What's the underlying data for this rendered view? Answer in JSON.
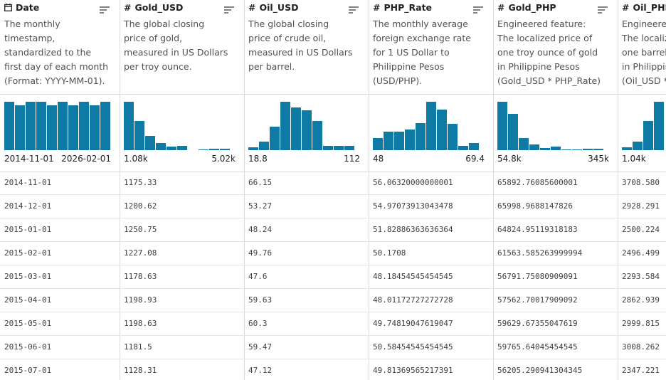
{
  "table": {
    "columns": [
      {
        "name": "Date",
        "description": "The monthly timestamp, standardized to the first day of each month (Format: YYYY-MM-01).",
        "histogram": [
          100,
          93,
          100,
          100,
          93,
          100,
          93,
          100,
          93,
          100
        ],
        "range_min": "2014-11-01",
        "range_max": "2026-02-01"
      },
      {
        "type_symbol": "#",
        "name": "Gold_USD",
        "description": "The global closing price of gold, measured in US Dollars per troy ounce.",
        "histogram": [
          100,
          60,
          29,
          15,
          7,
          9,
          0,
          1,
          3,
          3
        ],
        "range_min": "1.08k",
        "range_max": "5.02k"
      },
      {
        "type_symbol": "#",
        "name": "Oil_USD",
        "description": "The global closing price of crude oil, measured in US Dollars per barrel.",
        "histogram": [
          6,
          18,
          49,
          100,
          88,
          82,
          60,
          9,
          9,
          9
        ],
        "range_min": "18.8",
        "range_max": "112"
      },
      {
        "type_symbol": "#",
        "name": "PHP_Rate",
        "description": "The monthly average foreign exchange rate for 1 US Dollar to Philippine Pesos (USD/PHP).",
        "histogram": [
          25,
          38,
          38,
          43,
          56,
          100,
          84,
          54,
          9,
          15
        ],
        "range_min": "48",
        "range_max": "69.4"
      },
      {
        "type_symbol": "#",
        "name": "Gold_PHP",
        "description": "Engineered feature: The localized price of one troy ounce of gold in Philippine Pesos (Gold_USD * PHP_Rate)",
        "histogram": [
          100,
          75,
          25,
          12,
          4,
          7,
          1,
          1,
          3,
          3
        ],
        "range_min": "54.8k",
        "range_max": "345k"
      },
      {
        "type_symbol": "#",
        "name": "Oil_PHP",
        "description": "Engineered feature: The localized price of one barrel of crude oil in Philippine Pesos (Oil_USD * PHP_Rate)",
        "histogram": [
          6,
          18,
          60,
          100
        ],
        "range_min": "1.04k"
      }
    ],
    "rows": [
      [
        "2014-11-01",
        "1175.33",
        "66.15",
        "56.06320000000001",
        "65892.76085600001",
        "3708.580"
      ],
      [
        "2014-12-01",
        "1200.62",
        "53.27",
        "54.97073913043478",
        "65998.9688147826",
        "2928.291"
      ],
      [
        "2015-01-01",
        "1250.75",
        "48.24",
        "51.82886363636364",
        "64824.95119318183",
        "2500.224"
      ],
      [
        "2015-02-01",
        "1227.08",
        "49.76",
        "50.1708",
        "61563.585263999994",
        "2496.499"
      ],
      [
        "2015-03-01",
        "1178.63",
        "47.6",
        "48.18454545454545",
        "56791.75080909091",
        "2293.584"
      ],
      [
        "2015-04-01",
        "1198.93",
        "59.63",
        "48.01172727272728",
        "57562.70017909092",
        "2862.939"
      ],
      [
        "2015-05-01",
        "1198.63",
        "60.3",
        "49.74819047619047",
        "59629.67355047619",
        "2999.815"
      ],
      [
        "2015-06-01",
        "1181.5",
        "59.47",
        "50.58454545454545",
        "59765.64045454545",
        "3008.262"
      ],
      [
        "2015-07-01",
        "1128.31",
        "47.12",
        "49.81369565217391",
        "56205.290941304345",
        "2347.221"
      ]
    ]
  }
}
